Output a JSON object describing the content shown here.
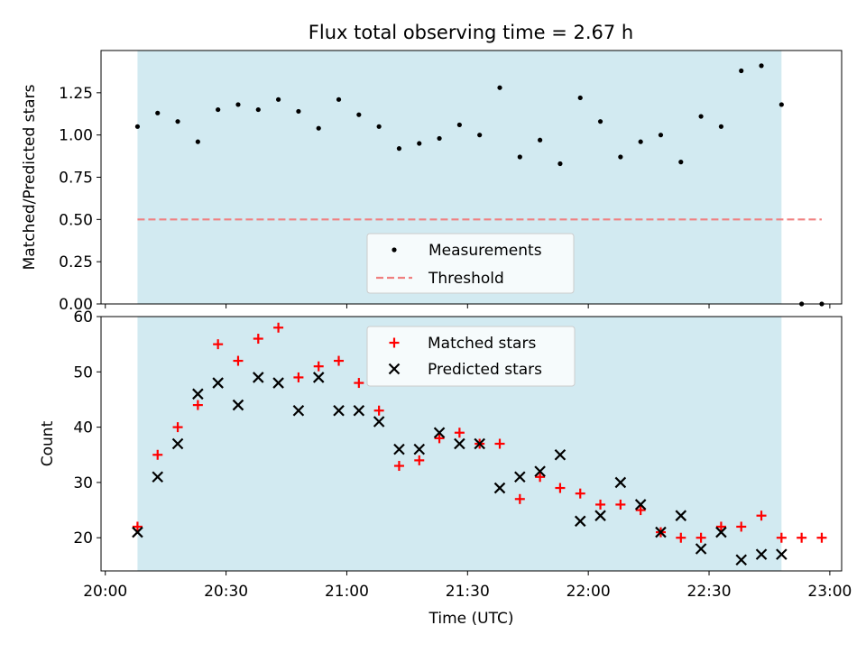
{
  "title": "Flux total observing time = 2.67 h",
  "colors": {
    "shade": "#add8e6",
    "measurement": "#000000",
    "threshold": "#f08080",
    "matched": "#ff0000",
    "predicted": "#000000"
  },
  "chart_data": [
    {
      "type": "scatter",
      "ylabel": "Matched/Predicted stars",
      "ylim": [
        0,
        1.5
      ],
      "yticks": [
        "0.00",
        "0.25",
        "0.50",
        "0.75",
        "1.00",
        "1.25"
      ],
      "x_time_range": [
        "20:00",
        "23:02"
      ],
      "shaded_interval": [
        "20:08",
        "22:48"
      ],
      "legend_position": "bottom-center",
      "series": [
        {
          "name": "Measurements",
          "marker": "dot",
          "x": [
            "20:08",
            "20:13",
            "20:18",
            "20:23",
            "20:28",
            "20:33",
            "20:38",
            "20:43",
            "20:48",
            "20:53",
            "20:58",
            "21:03",
            "21:08",
            "21:13",
            "21:18",
            "21:23",
            "21:28",
            "21:33",
            "21:38",
            "21:43",
            "21:48",
            "21:53",
            "21:58",
            "22:03",
            "22:08",
            "22:13",
            "22:18",
            "22:23",
            "22:28",
            "22:33",
            "22:38",
            "22:43",
            "22:48",
            "22:53",
            "22:58"
          ],
          "y": [
            1.05,
            1.13,
            1.08,
            0.96,
            1.15,
            1.18,
            1.15,
            1.21,
            1.14,
            1.04,
            1.21,
            1.12,
            1.05,
            0.92,
            0.95,
            0.98,
            1.06,
            1.0,
            1.28,
            0.87,
            0.97,
            0.83,
            1.22,
            1.08,
            0.87,
            0.96,
            1.0,
            0.84,
            1.11,
            1.05,
            1.38,
            1.41,
            1.18,
            0.0,
            0.0
          ]
        },
        {
          "name": "Threshold",
          "style": "dashed",
          "x": [
            "20:08",
            "22:58"
          ],
          "y": [
            0.5,
            0.5
          ]
        }
      ]
    },
    {
      "type": "scatter",
      "xlabel": "Time (UTC)",
      "ylabel": "Count",
      "ylim": [
        14,
        60
      ],
      "yticks": [
        "20",
        "30",
        "40",
        "50",
        "60"
      ],
      "xticks": [
        "20:00",
        "20:30",
        "21:00",
        "21:30",
        "22:00",
        "22:30",
        "23:00"
      ],
      "x_time_range": [
        "20:00",
        "23:02"
      ],
      "shaded_interval": [
        "20:08",
        "22:48"
      ],
      "legend_position": "top-center",
      "series": [
        {
          "name": "Matched stars",
          "marker": "plus",
          "x": [
            "20:08",
            "20:13",
            "20:18",
            "20:23",
            "20:28",
            "20:33",
            "20:38",
            "20:43",
            "20:48",
            "20:53",
            "20:58",
            "21:03",
            "21:08",
            "21:13",
            "21:18",
            "21:23",
            "21:28",
            "21:33",
            "21:38",
            "21:43",
            "21:48",
            "21:53",
            "21:58",
            "22:03",
            "22:08",
            "22:13",
            "22:18",
            "22:23",
            "22:28",
            "22:33",
            "22:38",
            "22:43",
            "22:48",
            "22:53",
            "22:58"
          ],
          "y": [
            22,
            35,
            40,
            44,
            55,
            52,
            56,
            58,
            49,
            51,
            52,
            48,
            43,
            33,
            34,
            38,
            39,
            37,
            37,
            27,
            31,
            29,
            28,
            26,
            26,
            25,
            21,
            20,
            20,
            22,
            22,
            24,
            20,
            20,
            20
          ]
        },
        {
          "name": "Predicted stars",
          "marker": "x",
          "x": [
            "20:08",
            "20:13",
            "20:18",
            "20:23",
            "20:28",
            "20:33",
            "20:38",
            "20:43",
            "20:48",
            "20:53",
            "20:58",
            "21:03",
            "21:08",
            "21:13",
            "21:18",
            "21:23",
            "21:28",
            "21:33",
            "21:38",
            "21:43",
            "21:48",
            "21:53",
            "21:58",
            "22:03",
            "22:08",
            "22:13",
            "22:18",
            "22:23",
            "22:28",
            "22:33",
            "22:38",
            "22:43",
            "22:48"
          ],
          "y": [
            21,
            31,
            37,
            46,
            48,
            44,
            49,
            48,
            43,
            49,
            43,
            43,
            41,
            36,
            36,
            39,
            37,
            37,
            29,
            31,
            32,
            35,
            23,
            24,
            30,
            26,
            21,
            24,
            18,
            21,
            16,
            17,
            17
          ]
        }
      ]
    }
  ]
}
